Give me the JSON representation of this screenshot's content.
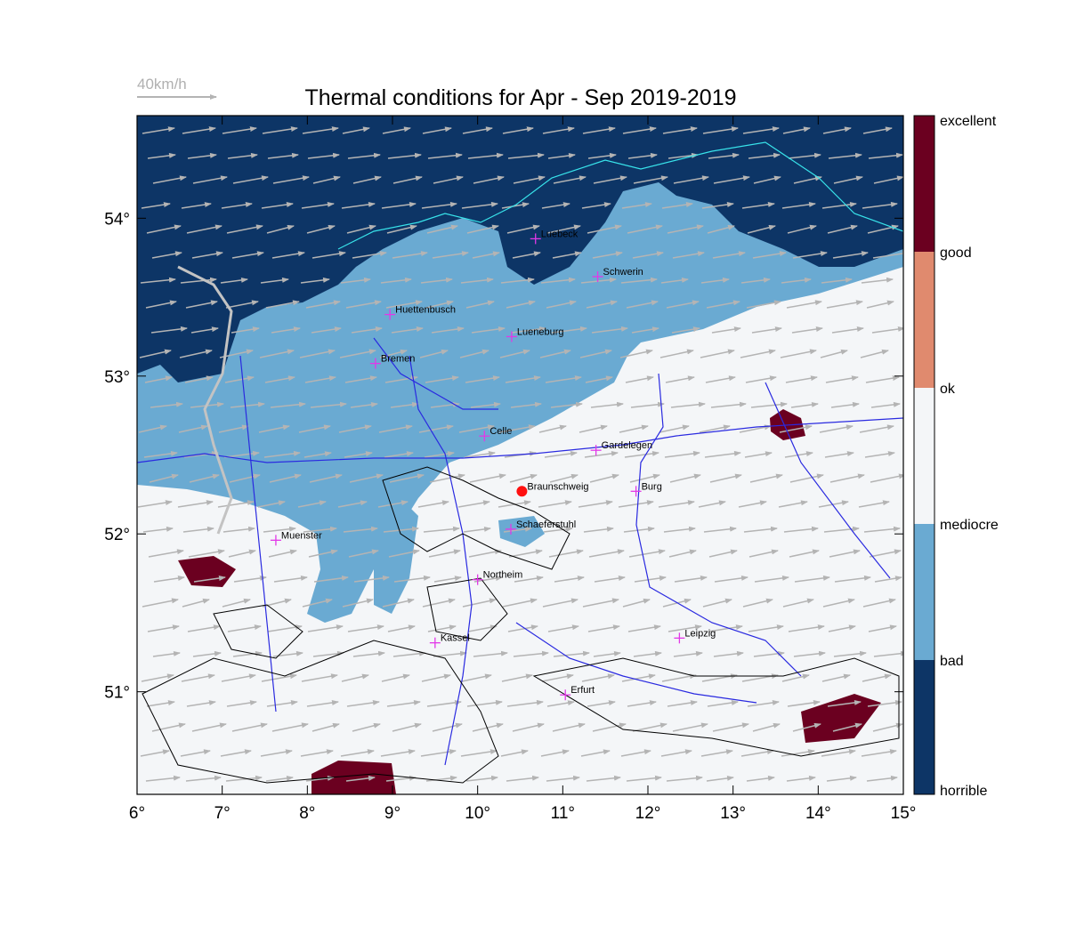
{
  "title": "Thermal conditions for Apr - Sep  2019-2019",
  "wind_reference": {
    "label": "40km/h"
  },
  "axes": {
    "lon_ticks": [
      "6°",
      "7°",
      "8°",
      "9°",
      "10°",
      "11°",
      "12°",
      "13°",
      "14°",
      "15°"
    ],
    "lat_ticks": [
      "54°",
      "53°",
      "52°",
      "51°"
    ],
    "lon_range": [
      6,
      15
    ],
    "lat_range": [
      50.35,
      54.65
    ]
  },
  "legend": {
    "categories": [
      "excellent",
      "good",
      "ok",
      "mediocre",
      "bad",
      "horrible"
    ],
    "colors": {
      "excellent": "#6b0020",
      "good": "#e08a6e",
      "ok": "#f4f6f8",
      "mediocre": "#6aaad2",
      "bad": "#0d3566",
      "horrible": "#0d3566"
    }
  },
  "places": [
    {
      "name": "Luebeck",
      "lon": 10.68,
      "lat": 53.87
    },
    {
      "name": "Schwerin",
      "lon": 11.41,
      "lat": 53.63
    },
    {
      "name": "Huettenbusch",
      "lon": 8.97,
      "lat": 53.39
    },
    {
      "name": "Lueneburg",
      "lon": 10.4,
      "lat": 53.25
    },
    {
      "name": "Bremen",
      "lon": 8.8,
      "lat": 53.08
    },
    {
      "name": "Celle",
      "lon": 10.08,
      "lat": 52.62
    },
    {
      "name": "Gardelegen",
      "lon": 11.39,
      "lat": 52.53
    },
    {
      "name": "Braunschweig",
      "lon": 10.52,
      "lat": 52.27
    },
    {
      "name": "Burg",
      "lon": 11.86,
      "lat": 52.27
    },
    {
      "name": "Muenster",
      "lon": 7.63,
      "lat": 51.96
    },
    {
      "name": "Schaeferstuhl",
      "lon": 10.39,
      "lat": 52.03
    },
    {
      "name": "Northeim",
      "lon": 10.0,
      "lat": 51.71
    },
    {
      "name": "Kassel",
      "lon": 9.5,
      "lat": 51.31
    },
    {
      "name": "Leipzig",
      "lon": 12.37,
      "lat": 51.34
    },
    {
      "name": "Erfurt",
      "lon": 11.03,
      "lat": 50.98
    }
  ]
}
